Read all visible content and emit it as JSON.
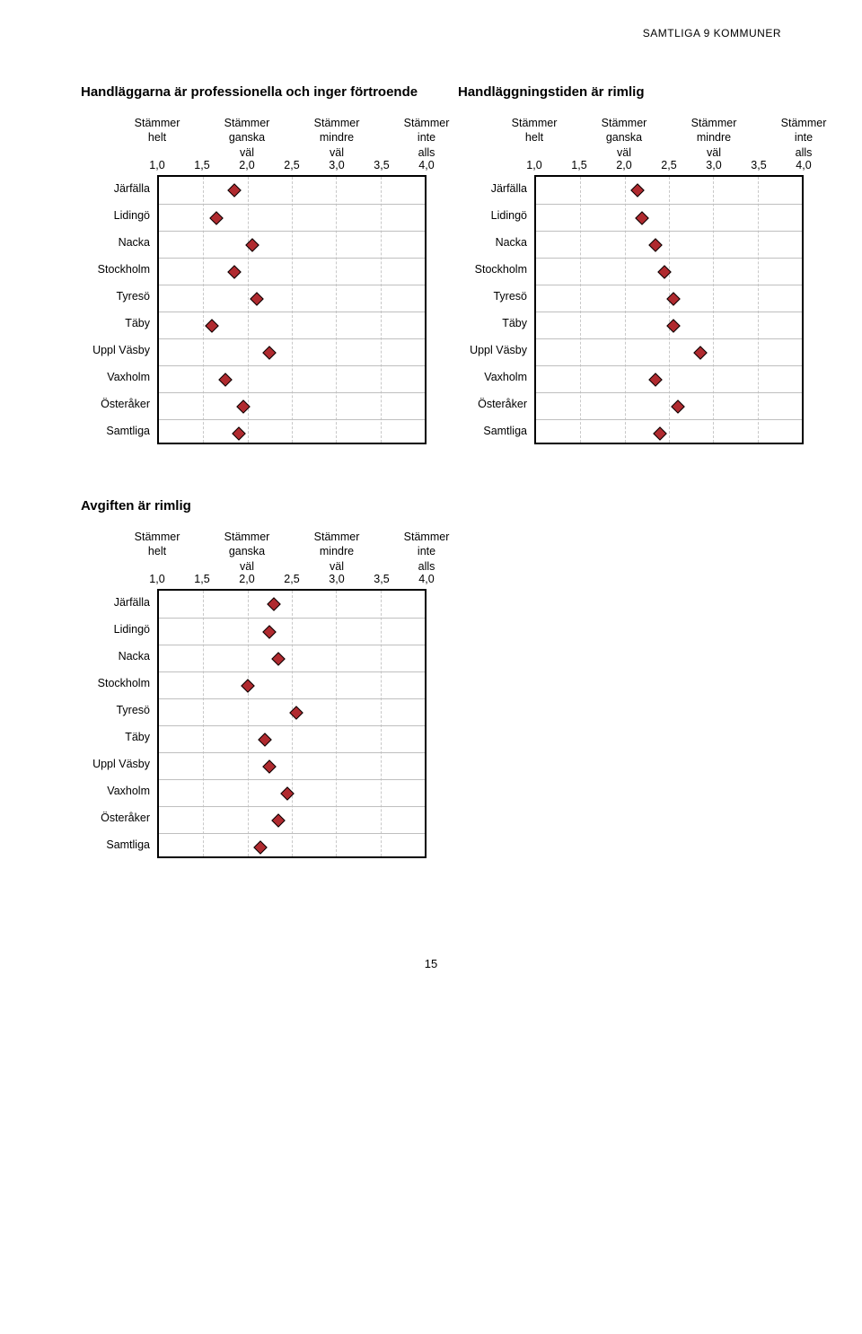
{
  "header": "SAMTLIGA 9 KOMMUNER",
  "page_number": "15",
  "axis": {
    "min": 1.0,
    "max": 4.0,
    "ticks": [
      "1,0",
      "1,5",
      "2,0",
      "2,5",
      "3,0",
      "3,5",
      "4,0"
    ],
    "label_positions_pct": [
      0,
      33.33,
      66.67,
      100
    ],
    "label_lines": [
      "Stämmer<br>helt",
      "Stämmer<br>ganska<br>väl",
      "Stämmer<br>mindre<br>väl",
      "Stämmer<br>inte<br>alls"
    ]
  },
  "colors": {
    "marker_fill": "#b02a2f",
    "marker_border": "#000000",
    "grid": "#c8c8c8",
    "row_border": "#bfbfbf",
    "plot_border": "#000000",
    "background": "#ffffff",
    "text": "#000000"
  },
  "row_labels": [
    "Järfälla",
    "Lidingö",
    "Nacka",
    "Stockholm",
    "Tyresö",
    "Täby",
    "Uppl Väsby",
    "Vaxholm",
    "Österåker",
    "Samtliga"
  ],
  "charts": [
    {
      "title": "Handläggarna är professionella och inger förtroende",
      "values": [
        1.85,
        1.65,
        2.05,
        1.85,
        2.1,
        1.6,
        2.25,
        1.75,
        1.95,
        1.9
      ]
    },
    {
      "title": "Handläggningstiden är rimlig",
      "values": [
        2.15,
        2.2,
        2.35,
        2.45,
        2.55,
        2.55,
        2.85,
        2.35,
        2.6,
        2.4
      ]
    },
    {
      "title": "Avgiften är rimlig",
      "values": [
        2.3,
        2.25,
        2.35,
        2.0,
        2.55,
        2.2,
        2.25,
        2.45,
        2.35,
        2.15
      ]
    }
  ]
}
